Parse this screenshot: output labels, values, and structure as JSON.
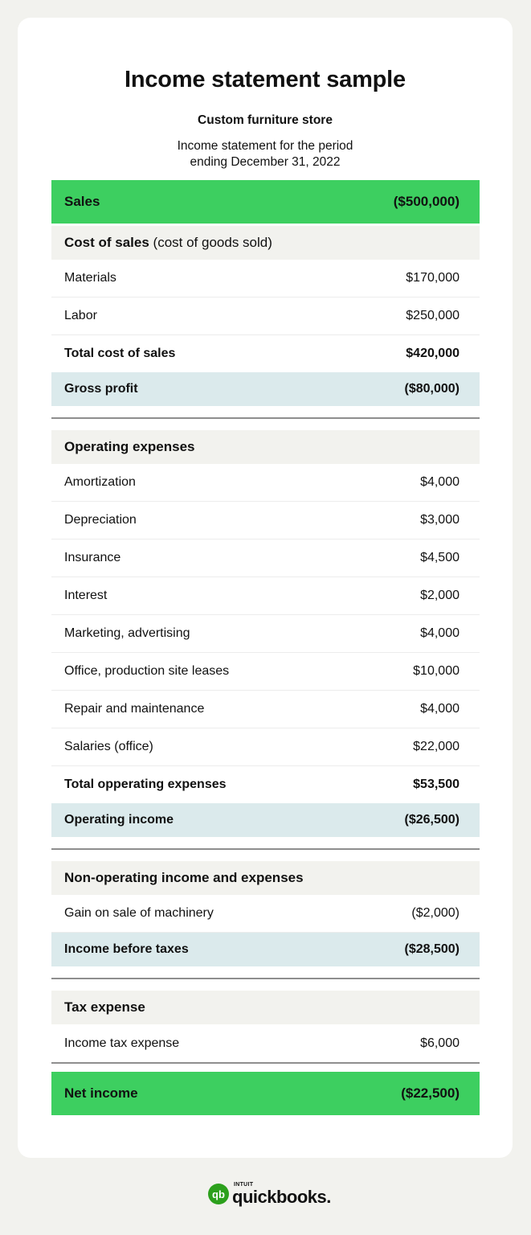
{
  "title": "Income statement sample",
  "subtitle": "Custom furniture store",
  "period_line1": "Income statement for the period",
  "period_line2": "ending December 31, 2022",
  "colors": {
    "green": "#3dcf60",
    "header": "#f2f2ee",
    "subtotal": "#dbeaec"
  },
  "rows": [
    {
      "type": "green",
      "label": "Sales",
      "value": "($500,000)"
    },
    {
      "type": "header",
      "label": "Cost of sales",
      "note": " (cost of goods sold)"
    },
    {
      "type": "item",
      "label": "Materials",
      "value": "$170,000"
    },
    {
      "type": "item",
      "label": "Labor",
      "value": "$250,000"
    },
    {
      "type": "total",
      "label": "Total cost of sales",
      "value": "$420,000"
    },
    {
      "type": "blue",
      "label": "Gross profit",
      "value": "($80,000)"
    },
    {
      "type": "divider"
    },
    {
      "type": "header",
      "label": "Operating expenses"
    },
    {
      "type": "item",
      "label": "Amortization",
      "value": "$4,000"
    },
    {
      "type": "item",
      "label": "Depreciation",
      "value": "$3,000"
    },
    {
      "type": "item",
      "label": "Insurance",
      "value": "$4,500"
    },
    {
      "type": "item",
      "label": "Interest",
      "value": "$2,000"
    },
    {
      "type": "item",
      "label": "Marketing, advertising",
      "value": "$4,000"
    },
    {
      "type": "item",
      "label": "Office, production site leases",
      "value": "$10,000"
    },
    {
      "type": "item",
      "label": "Repair and maintenance",
      "value": "$4,000"
    },
    {
      "type": "item",
      "label": "Salaries (office)",
      "value": "$22,000"
    },
    {
      "type": "total",
      "label": "Total opperating expenses",
      "value": "$53,500"
    },
    {
      "type": "blue",
      "label": "Operating income",
      "value": "($26,500)"
    },
    {
      "type": "divider"
    },
    {
      "type": "header",
      "label": "Non-operating income and expenses"
    },
    {
      "type": "item",
      "label": "Gain on sale of machinery",
      "value": "($2,000)"
    },
    {
      "type": "blue",
      "label": "Income before taxes",
      "value": "($28,500)"
    },
    {
      "type": "divider"
    },
    {
      "type": "header",
      "label": "Tax expense"
    },
    {
      "type": "item",
      "label": "Income tax expense",
      "value": "$6,000",
      "last": true
    },
    {
      "type": "divider",
      "tight": true
    },
    {
      "type": "green",
      "label": "Net income",
      "value": "($22,500)"
    }
  ],
  "logo": {
    "brand": "INTUIT",
    "name": "quickbooks.",
    "mark": "qb"
  }
}
